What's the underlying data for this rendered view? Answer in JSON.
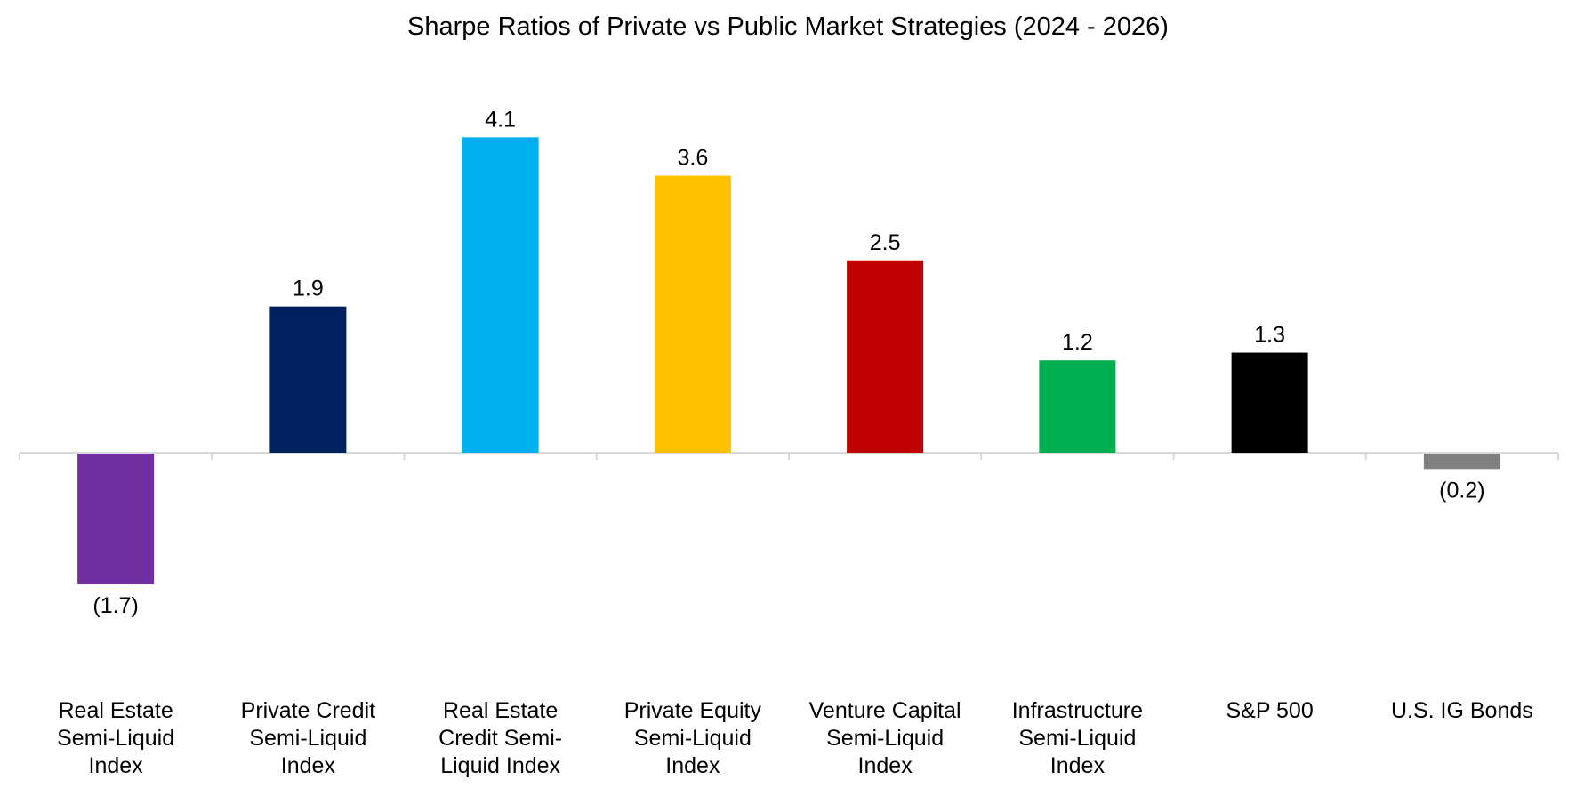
{
  "chart_data": {
    "type": "bar",
    "title": "Sharpe Ratios of Private vs Public Market Strategies (2024 - 2026)",
    "xlabel": "",
    "ylabel": "",
    "ylim": [
      -2.0,
      4.7
    ],
    "grid": false,
    "legend": "none",
    "categories": [
      [
        "Real Estate",
        "Semi-Liquid",
        "Index"
      ],
      [
        "Private Credit",
        "Semi-Liquid",
        "Index"
      ],
      [
        "Real Estate",
        "Credit Semi-",
        "Liquid Index"
      ],
      [
        "Private Equity",
        "Semi-Liquid",
        "Index"
      ],
      [
        "Venture Capital",
        "Semi-Liquid",
        "Index"
      ],
      [
        "Infrastructure",
        "Semi-Liquid",
        "Index"
      ],
      [
        "S&P 500"
      ],
      [
        "U.S. IG Bonds"
      ]
    ],
    "values": [
      -1.7,
      1.9,
      4.1,
      3.6,
      2.5,
      1.2,
      1.3,
      -0.2
    ],
    "data_labels": [
      "(1.7)",
      "1.9",
      "4.1",
      "3.6",
      "2.5",
      "1.2",
      "1.3",
      "(0.2)"
    ],
    "colors": [
      "#7030A0",
      "#002060",
      "#00B0F0",
      "#FFC000",
      "#C00000",
      "#00B050",
      "#000000",
      "#808080"
    ],
    "axis_color": "#D9D9D9"
  }
}
